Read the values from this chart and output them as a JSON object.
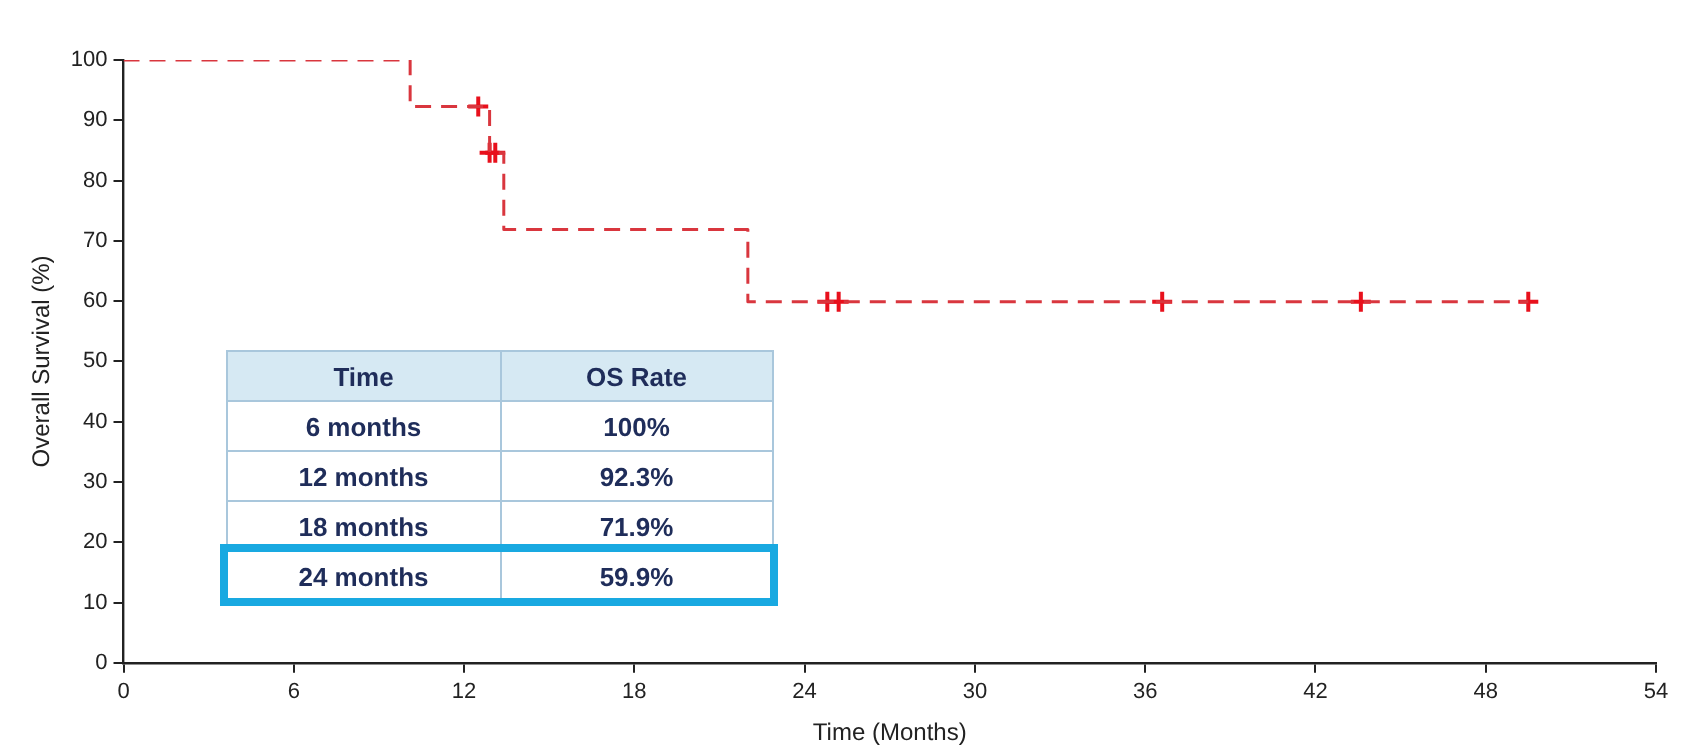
{
  "chart_data": {
    "type": "step",
    "xlabel": "Time (Months)",
    "ylabel": "Overall Survival (%)",
    "xlim": [
      0,
      54
    ],
    "xticks": [
      0,
      6,
      12,
      18,
      24,
      30,
      36,
      42,
      48,
      54
    ],
    "ylim": [
      0,
      100
    ],
    "yticks": [
      0,
      10,
      20,
      30,
      40,
      50,
      60,
      70,
      80,
      90,
      100
    ],
    "grid": false,
    "legend": false,
    "line_style": "dashed",
    "marker": "none",
    "series": [
      {
        "type": "step",
        "color": "#d9363e",
        "x": [
          0,
          10.1,
          12.9,
          13.4,
          22,
          49.5
        ],
        "values": [
          100,
          92.3,
          84.6,
          71.9,
          59.9,
          59.9
        ]
      },
      {
        "type": "scatter",
        "marker": "cross",
        "color": "#e8101c",
        "x": [
          12.5,
          12.9,
          13.1,
          24.8,
          25.2,
          36.6,
          43.6,
          49.5
        ],
        "values": [
          92.3,
          84.6,
          84.6,
          59.9,
          59.9,
          59.9,
          59.9,
          59.9
        ]
      }
    ],
    "annotations": [
      "Time",
      "OS Rate",
      "6 months",
      "100%",
      "12 months",
      "92.3%",
      "18 months",
      "71.9%",
      "24 months",
      "59.9%"
    ]
  }
}
